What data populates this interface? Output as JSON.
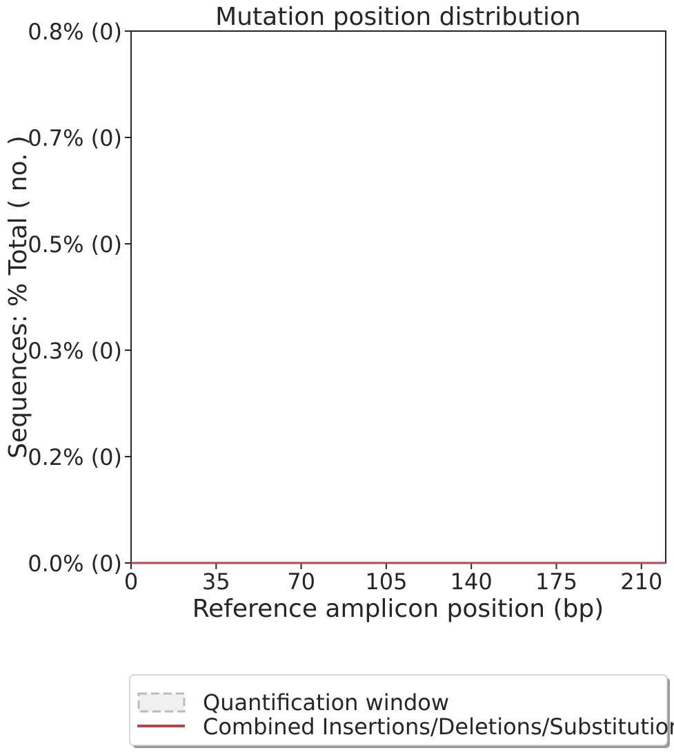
{
  "chart_data": {
    "type": "line",
    "title": "Mutation position distribution",
    "xlabel": "Reference amplicon position (bp)",
    "ylabel": "Sequences: % Total ( no. )",
    "xlim": [
      0,
      220
    ],
    "ylim": [
      0,
      1.0
    ],
    "x_ticks": [
      0,
      35,
      70,
      105,
      140,
      175,
      210
    ],
    "x_tick_labels": [
      "0",
      "35",
      "70",
      "105",
      "140",
      "175",
      "210"
    ],
    "y_ticks": [
      0.0,
      0.2,
      0.4,
      0.6,
      0.8,
      1.0
    ],
    "y_tick_labels": [
      "0.0% (0)",
      "0.2% (0)",
      "0.3% (0)",
      "0.5% (0)",
      "0.7% (0)",
      "0.8% (0)"
    ],
    "series": [
      {
        "name": "Combined Insertions/Deletions/Substitutions",
        "color": "#b5484f",
        "x": [
          0,
          220
        ],
        "y": [
          0,
          0
        ]
      }
    ],
    "legend": {
      "placement": "bottom-center",
      "items": [
        {
          "label": "Quantification window",
          "style": "dashed-box",
          "color": "#bbbbbb"
        },
        {
          "label": "Combined Insertions/Deletions/Substitutions",
          "style": "line",
          "color": "#b5484f"
        }
      ]
    },
    "grid": false
  }
}
